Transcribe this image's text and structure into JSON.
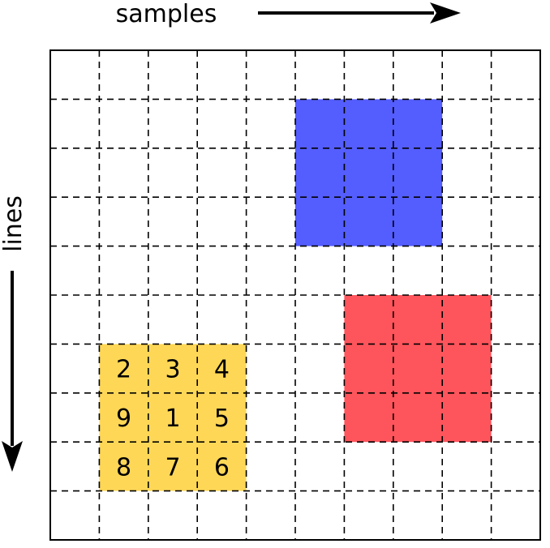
{
  "axes": {
    "x_label": "samples",
    "y_label": "lines"
  },
  "grid": {
    "rows": 10,
    "cols": 10,
    "line_color": "#000000"
  },
  "regions": [
    {
      "name": "blue-block",
      "color": "#545dfe",
      "row_start": 1,
      "col_start": 5,
      "rows": 3,
      "cols": 3
    },
    {
      "name": "red-block",
      "color": "#fe545b",
      "row_start": 5,
      "col_start": 6,
      "rows": 3,
      "cols": 3
    },
    {
      "name": "yellow-block",
      "color": "#fed757",
      "row_start": 6,
      "col_start": 1,
      "rows": 3,
      "cols": 3
    }
  ],
  "neighbor_labels": [
    [
      "2",
      "3",
      "4"
    ],
    [
      "9",
      "1",
      "5"
    ],
    [
      "8",
      "7",
      "6"
    ]
  ]
}
